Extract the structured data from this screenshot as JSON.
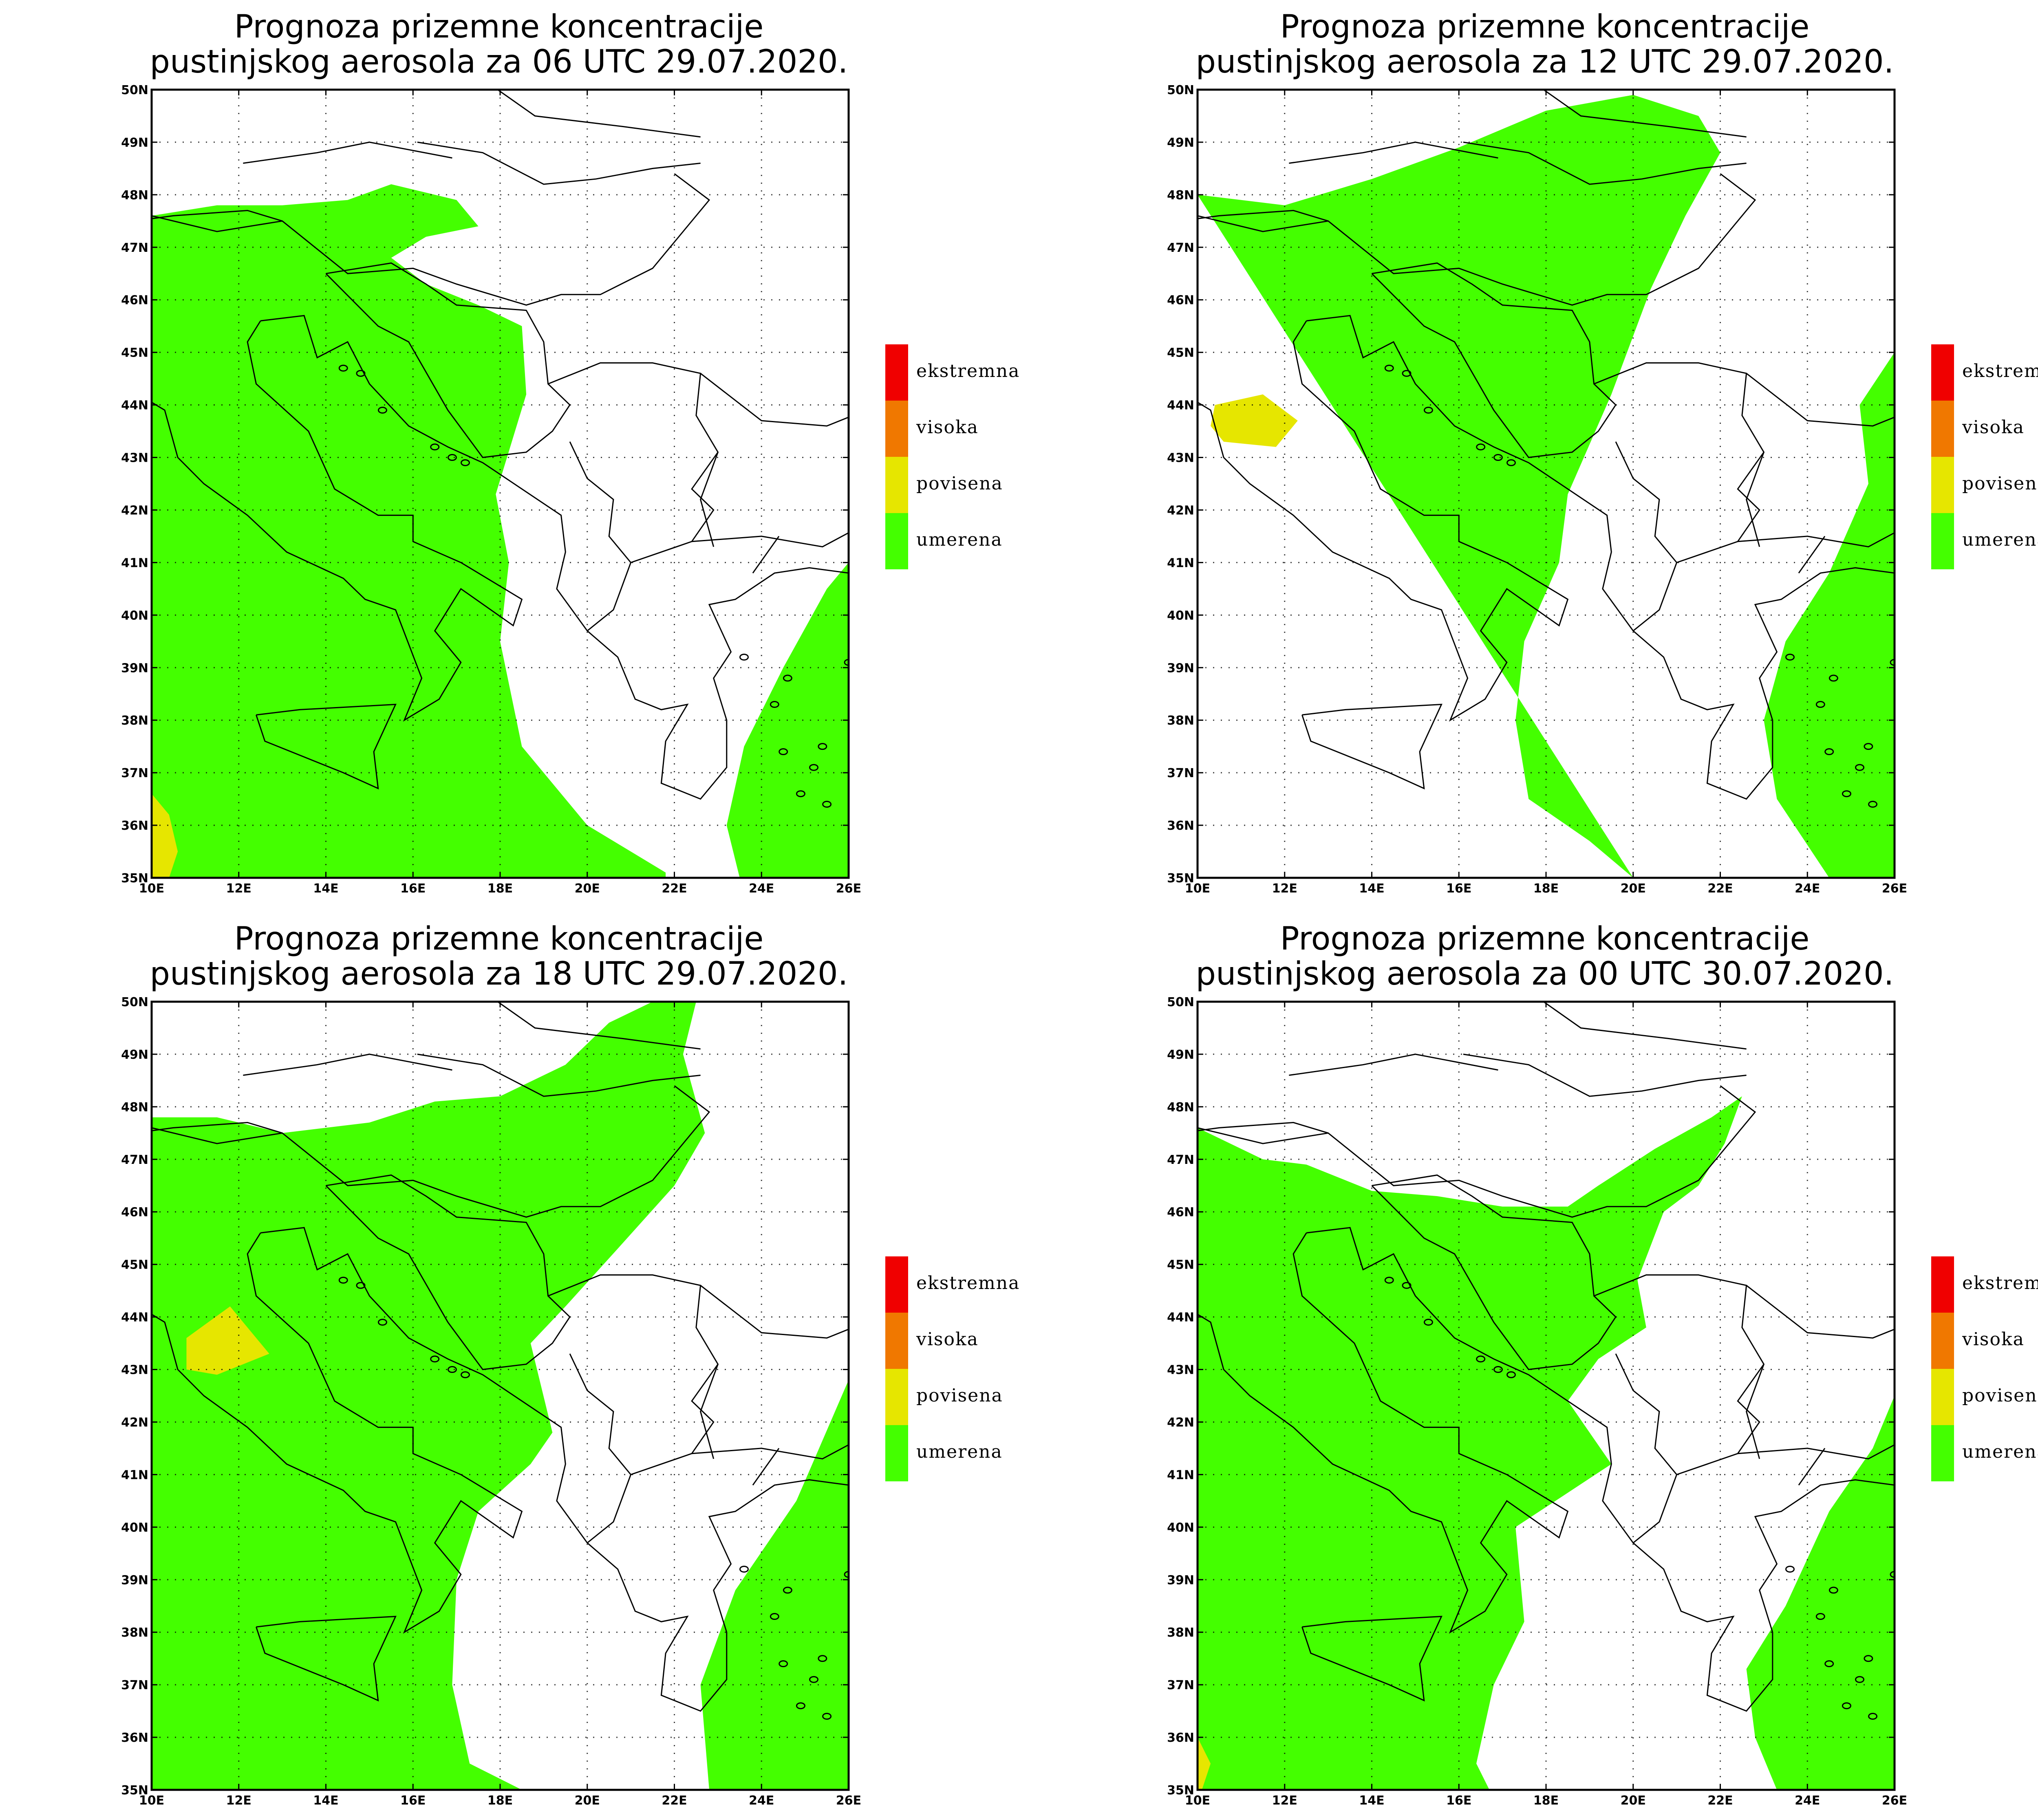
{
  "colors": {
    "umerena": "#44ff00",
    "povisena": "#e6e600",
    "visoka": "#f07800",
    "ekstremna": "#f00000",
    "frame": "#000000"
  },
  "legend": [
    {
      "key": "ekstremna",
      "label": "ekstremna"
    },
    {
      "key": "visoka",
      "label": "visoka"
    },
    {
      "key": "povisena",
      "label": "povisena"
    },
    {
      "key": "umerena",
      "label": "umerena"
    }
  ],
  "axes": {
    "lon_labels": [
      "10E",
      "12E",
      "14E",
      "16E",
      "18E",
      "20E",
      "22E",
      "24E",
      "26E"
    ],
    "lat_labels": [
      "35N",
      "36N",
      "37N",
      "38N",
      "39N",
      "40N",
      "41N",
      "42N",
      "43N",
      "44N",
      "45N",
      "46N",
      "47N",
      "48N",
      "49N",
      "50N"
    ],
    "lon_range": [
      10,
      26
    ],
    "lat_range": [
      35,
      50
    ]
  },
  "panels": [
    {
      "title_line1": "Prognoza prizemne koncentracije",
      "title_line2": "pustinjskog aerosola za 06 UTC 29.07.2020.",
      "umerena": [
        [
          10,
          47.6
        ],
        [
          11.5,
          47.8
        ],
        [
          13,
          47.8
        ],
        [
          14.5,
          47.9
        ],
        [
          15.5,
          48.2
        ],
        [
          17,
          47.9
        ],
        [
          17.5,
          47.4
        ],
        [
          16.3,
          47.2
        ],
        [
          15.5,
          46.8
        ],
        [
          16.3,
          46.3
        ],
        [
          17.5,
          45.9
        ],
        [
          18.5,
          45.5
        ],
        [
          18.6,
          44.2
        ],
        [
          17.9,
          42.3
        ],
        [
          18.2,
          41
        ],
        [
          18,
          39.5
        ],
        [
          18.5,
          37.5
        ],
        [
          20,
          36
        ],
        [
          21.8,
          35.1
        ],
        [
          21.8,
          35
        ],
        [
          10,
          35
        ]
      ],
      "umerena_2": [
        [
          26,
          35
        ],
        [
          23.5,
          35
        ],
        [
          23.2,
          36
        ],
        [
          23.6,
          37.5
        ],
        [
          24.5,
          39
        ],
        [
          25.5,
          40.5
        ],
        [
          26,
          41
        ]
      ],
      "povisena": [
        [
          10,
          36.6
        ],
        [
          10.4,
          36.2
        ],
        [
          10.6,
          35.5
        ],
        [
          10.4,
          35
        ],
        [
          10,
          35
        ]
      ]
    },
    {
      "title_line1": "Prognoza prizemne koncentracije",
      "title_line2": "pustinjskog aerosola za 12 UTC 29.07.2020.",
      "umerena": [
        [
          10,
          48
        ],
        [
          12,
          47.8
        ],
        [
          14,
          48.3
        ],
        [
          16,
          48.9
        ],
        [
          18,
          49.6
        ],
        [
          20,
          49.9
        ],
        [
          21.5,
          49.5
        ],
        [
          22,
          48.8
        ],
        [
          21.2,
          47.6
        ],
        [
          20.4,
          46.2
        ],
        [
          19.5,
          44.2
        ],
        [
          18.5,
          42.3
        ],
        [
          18.3,
          41
        ],
        [
          17.5,
          39.5
        ],
        [
          17.3,
          38
        ],
        [
          17.6,
          36.5
        ],
        [
          19,
          35.7
        ],
        [
          20,
          35
        ]
      ],
      "umerena_2": [
        [
          26,
          35
        ],
        [
          24.5,
          35
        ],
        [
          23.3,
          36.5
        ],
        [
          23,
          38
        ],
        [
          23.5,
          39.5
        ],
        [
          24.5,
          40.8
        ],
        [
          25.4,
          42.5
        ],
        [
          25.2,
          44
        ],
        [
          26,
          45
        ]
      ],
      "povisena": [
        [
          10.4,
          44
        ],
        [
          11.5,
          44.2
        ],
        [
          12.3,
          43.7
        ],
        [
          11.8,
          43.2
        ],
        [
          10.6,
          43.3
        ],
        [
          10.3,
          43.6
        ]
      ]
    },
    {
      "title_line1": "Prognoza prizemne koncentracije",
      "title_line2": "pustinjskog aerosola za 18 UTC 29.07.2020.",
      "umerena": [
        [
          10,
          47.8
        ],
        [
          11.5,
          47.8
        ],
        [
          13,
          47.5
        ],
        [
          15,
          47.7
        ],
        [
          16.5,
          48.1
        ],
        [
          18,
          48.2
        ],
        [
          19.5,
          48.8
        ],
        [
          20.5,
          49.6
        ],
        [
          21.5,
          50
        ],
        [
          22.5,
          50
        ],
        [
          22.2,
          49
        ],
        [
          22.7,
          47.5
        ],
        [
          22,
          46.5
        ],
        [
          20.7,
          45.3
        ],
        [
          19.5,
          44.2
        ],
        [
          18.7,
          43.5
        ],
        [
          19.2,
          41.8
        ],
        [
          18.7,
          41.2
        ],
        [
          17.5,
          40.3
        ],
        [
          17,
          39
        ],
        [
          16.9,
          37
        ],
        [
          17.3,
          35.5
        ],
        [
          18.5,
          35
        ],
        [
          10,
          35
        ]
      ],
      "umerena_2": [
        [
          26,
          35
        ],
        [
          22.8,
          35
        ],
        [
          22.6,
          37
        ],
        [
          23.4,
          38.8
        ],
        [
          24.8,
          40.5
        ],
        [
          26,
          42.8
        ]
      ],
      "povisena": [
        [
          10.8,
          43.6
        ],
        [
          11.8,
          44.2
        ],
        [
          12.7,
          43.3
        ],
        [
          11.5,
          42.9
        ],
        [
          10.8,
          43
        ]
      ]
    },
    {
      "title_line1": "Prognoza prizemne koncentracije",
      "title_line2": "pustinjskog aerosola za 00 UTC 30.07.2020.",
      "umerena": [
        [
          10,
          47.6
        ],
        [
          11.5,
          47
        ],
        [
          12.5,
          46.9
        ],
        [
          14,
          46.4
        ],
        [
          15.5,
          46.3
        ],
        [
          17,
          46.1
        ],
        [
          18.5,
          46.1
        ],
        [
          19.2,
          46.5
        ],
        [
          20.5,
          47.2
        ],
        [
          21.8,
          47.8
        ],
        [
          22.5,
          48.2
        ],
        [
          22.1,
          47.3
        ],
        [
          21.5,
          46.5
        ],
        [
          20.7,
          46
        ],
        [
          20.1,
          44.7
        ],
        [
          20.3,
          43.8
        ],
        [
          19.2,
          43.2
        ],
        [
          18.5,
          42.4
        ],
        [
          19.5,
          41.2
        ],
        [
          18.4,
          40.6
        ],
        [
          17.3,
          40
        ],
        [
          17.5,
          38.2
        ],
        [
          16.8,
          37
        ],
        [
          16.4,
          35.5
        ],
        [
          16.7,
          35
        ],
        [
          10,
          35
        ]
      ],
      "umerena_2": [
        [
          26,
          35
        ],
        [
          23.3,
          35
        ],
        [
          22.8,
          36
        ],
        [
          22.6,
          37.3
        ],
        [
          23.5,
          38.5
        ],
        [
          24.5,
          40.3
        ],
        [
          25.5,
          41.5
        ],
        [
          26,
          42.5
        ]
      ],
      "povisena": [
        [
          10,
          36
        ],
        [
          10.3,
          35.5
        ],
        [
          10.1,
          35
        ],
        [
          10,
          35
        ]
      ]
    }
  ]
}
